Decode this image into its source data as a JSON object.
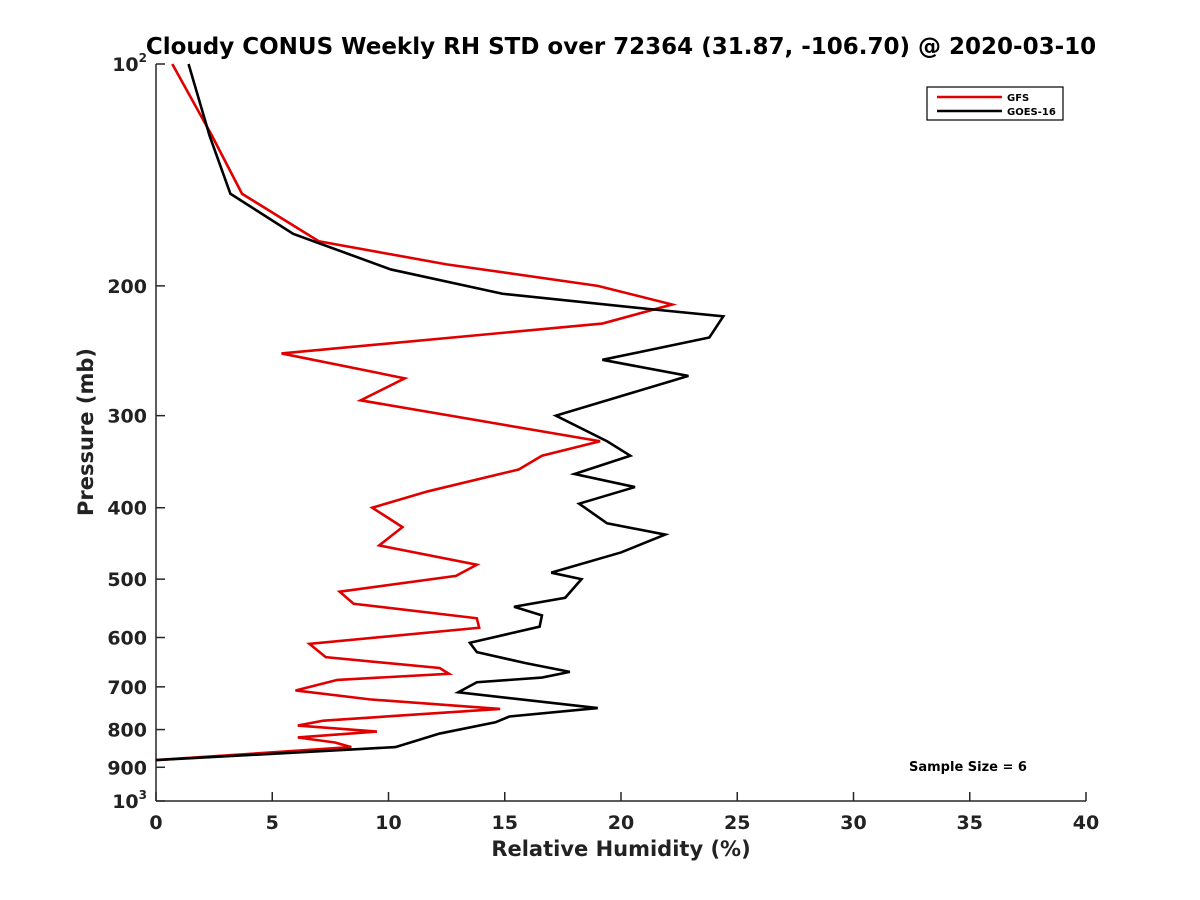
{
  "chart_data": {
    "type": "line",
    "title": "Cloudy CONUS Weekly RH STD over 72364 (31.87, -106.70) @ 2020-03-10",
    "xlabel": "Relative Humidity (%)",
    "ylabel": "Pressure (mb)",
    "xlim": [
      0,
      40
    ],
    "ylim": [
      100,
      1000
    ],
    "y_scale": "log",
    "y_reversed": true,
    "grid": false,
    "legend_position": "top-right",
    "x_ticks": [
      "0",
      "5",
      "10",
      "15",
      "20",
      "25",
      "30",
      "35",
      "40"
    ],
    "y_ticks": [
      {
        "base": "10",
        "exp": "2",
        "value": 100
      },
      {
        "label": "200",
        "value": 200
      },
      {
        "label": "300",
        "value": 300
      },
      {
        "label": "400",
        "value": 400
      },
      {
        "label": "500",
        "value": 500
      },
      {
        "label": "600",
        "value": 600
      },
      {
        "label": "700",
        "value": 700
      },
      {
        "label": "800",
        "value": 800
      },
      {
        "label": "900",
        "value": 900
      },
      {
        "base": "10",
        "exp": "3",
        "value": 1000
      }
    ],
    "annotation": "Sample Size = 6",
    "series": [
      {
        "name": "GFS",
        "color": "#e00000",
        "points": [
          [
            0.7,
            100
          ],
          [
            2.4,
            125
          ],
          [
            3.7,
            150
          ],
          [
            7.0,
            174
          ],
          [
            12.5,
            187
          ],
          [
            19.0,
            200
          ],
          [
            22.2,
            212
          ],
          [
            19.2,
            225
          ],
          [
            5.4,
            247
          ],
          [
            10.7,
            267
          ],
          [
            8.8,
            286
          ],
          [
            19.1,
            325
          ],
          [
            16.6,
            340
          ],
          [
            15.6,
            355
          ],
          [
            11.7,
            380
          ],
          [
            9.3,
            400
          ],
          [
            10.6,
            425
          ],
          [
            9.6,
            450
          ],
          [
            13.8,
            478
          ],
          [
            12.9,
            495
          ],
          [
            7.9,
            520
          ],
          [
            8.5,
            540
          ],
          [
            13.8,
            565
          ],
          [
            13.9,
            582
          ],
          [
            6.6,
            612
          ],
          [
            7.3,
            638
          ],
          [
            12.2,
            660
          ],
          [
            12.6,
            672
          ],
          [
            7.8,
            685
          ],
          [
            6.0,
            708
          ],
          [
            9.2,
            728
          ],
          [
            14.8,
            750
          ],
          [
            7.2,
            778
          ],
          [
            6.1,
            790
          ],
          [
            9.5,
            805
          ],
          [
            6.1,
            820
          ],
          [
            7.7,
            833
          ],
          [
            8.4,
            845
          ],
          [
            0.0,
            880
          ]
        ]
      },
      {
        "name": "GOES-16",
        "color": "#000000",
        "points": [
          [
            1.4,
            100
          ],
          [
            2.3,
            125
          ],
          [
            3.2,
            150
          ],
          [
            5.9,
            170
          ],
          [
            10.1,
            190
          ],
          [
            14.9,
            205
          ],
          [
            21.2,
            215
          ],
          [
            24.4,
            220
          ],
          [
            23.8,
            235
          ],
          [
            19.2,
            252
          ],
          [
            22.9,
            265
          ],
          [
            17.2,
            300
          ],
          [
            19.4,
            325
          ],
          [
            20.4,
            340
          ],
          [
            18.0,
            360
          ],
          [
            20.6,
            375
          ],
          [
            18.2,
            395
          ],
          [
            19.4,
            420
          ],
          [
            21.9,
            435
          ],
          [
            20.0,
            460
          ],
          [
            17.0,
            490
          ],
          [
            18.3,
            500
          ],
          [
            17.6,
            530
          ],
          [
            15.4,
            545
          ],
          [
            16.6,
            560
          ],
          [
            16.5,
            580
          ],
          [
            13.5,
            610
          ],
          [
            13.8,
            628
          ],
          [
            15.9,
            650
          ],
          [
            17.8,
            668
          ],
          [
            16.6,
            680
          ],
          [
            13.8,
            690
          ],
          [
            13.0,
            712
          ],
          [
            19.0,
            748
          ],
          [
            15.2,
            768
          ],
          [
            14.6,
            782
          ],
          [
            12.2,
            810
          ],
          [
            10.3,
            845
          ],
          [
            0.0,
            880
          ]
        ]
      }
    ]
  }
}
